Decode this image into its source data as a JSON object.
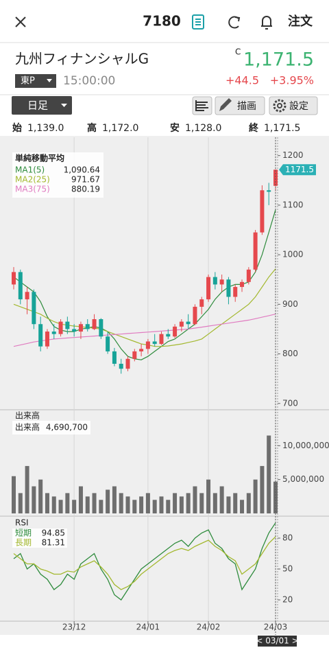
{
  "header": {
    "title": "7180",
    "order": "注文"
  },
  "quote": {
    "name": "九州フィナンシャルG",
    "flag": "C",
    "price": "1,171.5",
    "market": "東P",
    "time": "15:00:00",
    "change": "+44.5",
    "change_pct": "+3.95%"
  },
  "toolbar": {
    "period": "日足",
    "draw": "描画",
    "settings": "設定"
  },
  "ohlc": [
    {
      "label": "始",
      "value": "1,139.0"
    },
    {
      "label": "高",
      "value": "1,172.0"
    },
    {
      "label": "安",
      "value": "1,128.0"
    },
    {
      "label": "終",
      "value": "1,171.5"
    }
  ],
  "chart_data": [
    {
      "type": "candlestick",
      "title": "単純移動平均",
      "up_color": "#e5484d",
      "down_color": "#17a398",
      "open": [
        940,
        965,
        910,
        925,
        860,
        815,
        845,
        840,
        865,
        850,
        845,
        860,
        850,
        870,
        835,
        805,
        780,
        770,
        790,
        805,
        810,
        825,
        820,
        840,
        835,
        855,
        865,
        860,
        895,
        910,
        955,
        940,
        950,
        915,
        935,
        945,
        970,
        1045,
        1130,
        1139
      ],
      "high": [
        975,
        970,
        935,
        930,
        875,
        850,
        860,
        870,
        875,
        860,
        865,
        870,
        880,
        872,
        845,
        812,
        790,
        795,
        810,
        820,
        830,
        840,
        845,
        850,
        860,
        870,
        880,
        900,
        915,
        960,
        965,
        960,
        955,
        940,
        950,
        975,
        1050,
        1140,
        1145,
        1172
      ],
      "low": [
        930,
        900,
        880,
        850,
        805,
        810,
        830,
        835,
        840,
        835,
        830,
        845,
        848,
        830,
        800,
        775,
        760,
        765,
        785,
        795,
        800,
        815,
        818,
        830,
        832,
        845,
        850,
        858,
        880,
        905,
        930,
        925,
        900,
        905,
        925,
        940,
        965,
        1040,
        1100,
        1128
      ],
      "close": [
        965,
        910,
        925,
        860,
        815,
        845,
        840,
        865,
        850,
        845,
        860,
        850,
        870,
        835,
        805,
        780,
        770,
        790,
        805,
        810,
        825,
        820,
        840,
        835,
        855,
        865,
        860,
        895,
        910,
        955,
        940,
        950,
        915,
        935,
        945,
        970,
        1045,
        1130,
        1127,
        1171.5
      ],
      "series": [
        {
          "name": "MA1(5)",
          "color": "#2e8b3c",
          "legend_value": "1,090.64",
          "values": [
            955,
            945,
            935,
            925,
            905,
            875,
            855,
            848,
            845,
            845,
            850,
            852,
            855,
            852,
            845,
            830,
            810,
            795,
            790,
            788,
            795,
            805,
            815,
            825,
            830,
            840,
            850,
            860,
            875,
            890,
            910,
            925,
            935,
            940,
            940,
            945,
            965,
            1000,
            1045,
            1090.64
          ]
        },
        {
          "name": "MA2(25)",
          "color": "#a3b82e",
          "legend_value": "971.67",
          "values": [
            900,
            895,
            890,
            885,
            880,
            872,
            865,
            860,
            858,
            856,
            855,
            853,
            852,
            850,
            845,
            840,
            835,
            830,
            825,
            820,
            818,
            815,
            815,
            816,
            818,
            820,
            823,
            826,
            830,
            840,
            850,
            860,
            870,
            880,
            890,
            900,
            915,
            935,
            955,
            971.67
          ]
        },
        {
          "name": "MA3(75)",
          "color": "#e07bc0",
          "legend_value": "880.19",
          "values": [
            815,
            818,
            821,
            824,
            826,
            828,
            830,
            831,
            832,
            833,
            834,
            835,
            836,
            837,
            838,
            839,
            840,
            841,
            842,
            843,
            844,
            845,
            846,
            847,
            848,
            849,
            850,
            852,
            854,
            856,
            858,
            860,
            862,
            864,
            866,
            868,
            871,
            874,
            877,
            880.19
          ]
        }
      ],
      "ylim": [
        690,
        1230
      ],
      "yticks": [
        700,
        800,
        900,
        1000,
        1100,
        1200
      ]
    },
    {
      "type": "bar",
      "title": "出来高",
      "series": [
        {
          "name": "出来高",
          "color": "#6e6e6e",
          "legend_value": "4,690,700",
          "values": [
            5500000,
            3000000,
            7000000,
            4000000,
            5000000,
            3000000,
            2500000,
            2000000,
            3000000,
            2000000,
            4000000,
            2500000,
            3000000,
            2000000,
            3500000,
            4000000,
            3000000,
            2500000,
            2000000,
            2500000,
            3000000,
            2000000,
            2500000,
            2000000,
            3000000,
            2500000,
            3000000,
            4000000,
            3000000,
            5000000,
            3000000,
            4000000,
            2500000,
            3000000,
            2000000,
            3000000,
            5000000,
            7000000,
            11500000,
            4690700
          ]
        }
      ],
      "ylim": [
        0,
        15000000
      ],
      "yticks": [
        {
          "value": 5000000,
          "label": "5,000,000"
        },
        {
          "value": 10000000,
          "label": "10,000,000"
        }
      ]
    },
    {
      "type": "line",
      "title": "RSI",
      "categories": [
        null,
        null,
        null,
        null,
        null,
        null,
        null,
        null,
        null,
        "23/12",
        null,
        null,
        null,
        null,
        null,
        null,
        null,
        null,
        null,
        null,
        "24/01",
        null,
        null,
        null,
        null,
        null,
        null,
        null,
        null,
        "24/02",
        null,
        null,
        null,
        null,
        null,
        null,
        null,
        null,
        null,
        "24/03"
      ],
      "series": [
        {
          "name": "短期",
          "color": "#2e8b3c",
          "values": [
            60,
            65,
            50,
            55,
            45,
            40,
            30,
            35,
            45,
            40,
            55,
            60,
            65,
            50,
            40,
            25,
            20,
            30,
            40,
            50,
            55,
            60,
            65,
            70,
            75,
            78,
            72,
            80,
            85,
            88,
            75,
            70,
            60,
            55,
            30,
            40,
            50,
            70,
            85,
            94.85
          ]
        },
        {
          "name": "長期",
          "color": "#a3b82e",
          "values": [
            65,
            60,
            55,
            55,
            50,
            48,
            45,
            45,
            48,
            47,
            52,
            55,
            58,
            52,
            45,
            35,
            30,
            33,
            38,
            45,
            50,
            55,
            60,
            65,
            68,
            70,
            68,
            72,
            75,
            78,
            72,
            68,
            62,
            58,
            45,
            50,
            55,
            65,
            75,
            81.31
          ]
        }
      ],
      "ylim": [
        0,
        100
      ],
      "yticks": [
        20,
        50,
        80
      ]
    }
  ],
  "footer": {
    "cursor": "< 03/01 >"
  }
}
